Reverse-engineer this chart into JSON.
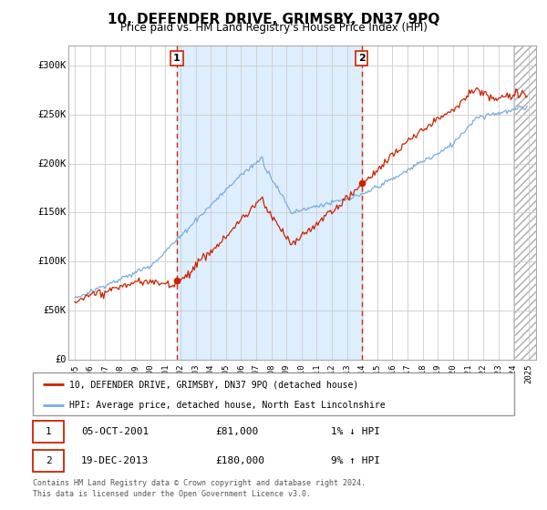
{
  "title": "10, DEFENDER DRIVE, GRIMSBY, DN37 9PQ",
  "subtitle": "Price paid vs. HM Land Registry's House Price Index (HPI)",
  "title_fontsize": 11,
  "subtitle_fontsize": 8.5,
  "xlim": [
    1994.583,
    2025.5
  ],
  "ylim": [
    0,
    320000
  ],
  "yticks": [
    0,
    50000,
    100000,
    150000,
    200000,
    250000,
    300000
  ],
  "ytick_labels": [
    "£0",
    "£50K",
    "£100K",
    "£150K",
    "£200K",
    "£250K",
    "£300K"
  ],
  "xticks": [
    1995,
    1996,
    1997,
    1998,
    1999,
    2000,
    2001,
    2002,
    2003,
    2004,
    2005,
    2006,
    2007,
    2008,
    2009,
    2010,
    2011,
    2012,
    2013,
    2014,
    2015,
    2016,
    2017,
    2018,
    2019,
    2020,
    2021,
    2022,
    2023,
    2024,
    2025
  ],
  "hpi_color": "#7aaddc",
  "price_color": "#cc2200",
  "sale1_x": 2001.753,
  "sale1_y": 81000,
  "sale2_x": 2013.962,
  "sale2_y": 180000,
  "vline_color": "#dd2200",
  "shade_color": "#ddeeff",
  "hatch_start": 2024.083,
  "grid_color": "#cccccc",
  "bg_color": "#ffffff",
  "legend_label1": "10, DEFENDER DRIVE, GRIMSBY, DN37 9PQ (detached house)",
  "legend_label2": "HPI: Average price, detached house, North East Lincolnshire",
  "table_row1": [
    "1",
    "05-OCT-2001",
    "£81,000",
    "1% ↓ HPI"
  ],
  "table_row2": [
    "2",
    "19-DEC-2013",
    "£180,000",
    "9% ↑ HPI"
  ],
  "footer1": "Contains HM Land Registry data © Crown copyright and database right 2024.",
  "footer2": "This data is licensed under the Open Government Licence v3.0."
}
